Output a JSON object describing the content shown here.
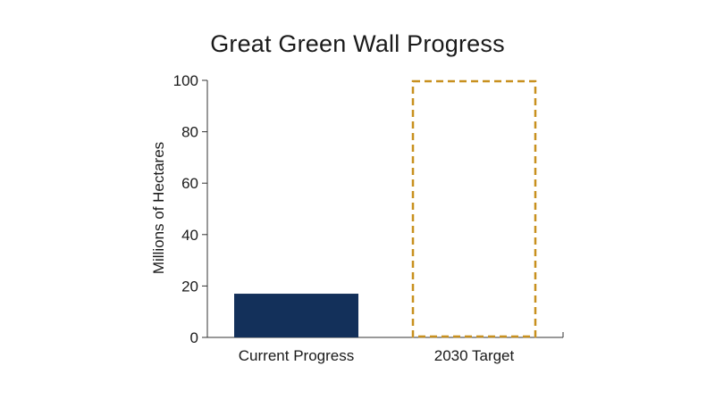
{
  "chart_data": {
    "type": "bar",
    "title": "Great Green Wall Progress",
    "xlabel": "",
    "ylabel": "Millions of Hectares",
    "categories": [
      "Current Progress",
      "2030 Target"
    ],
    "values": [
      17,
      100
    ],
    "bar_styles": [
      "solid",
      "dashed-outline"
    ],
    "colors": {
      "current": "#13305a",
      "target": "#c8901e",
      "axis": "#333333"
    },
    "ylim": [
      0,
      100
    ],
    "yticks": [
      0,
      20,
      40,
      60,
      80,
      100
    ],
    "grid": false,
    "legend": "none"
  }
}
